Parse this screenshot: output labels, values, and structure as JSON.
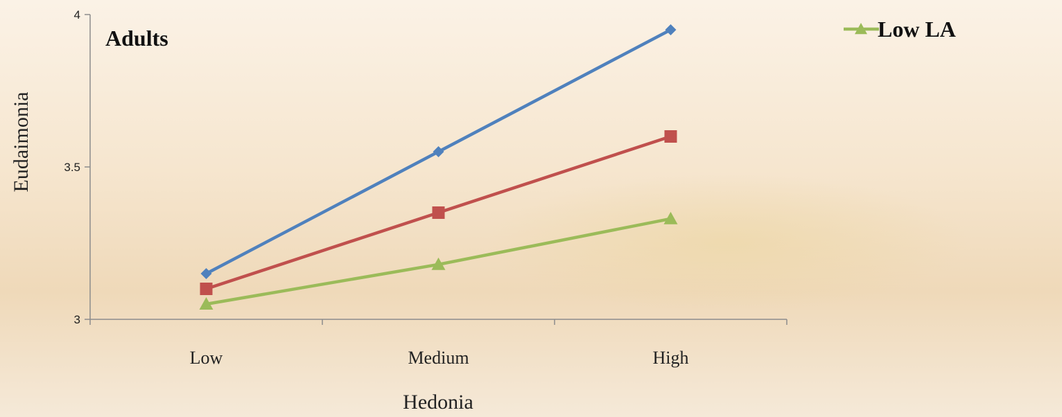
{
  "chart_data": {
    "type": "line",
    "panel_label": "Adults",
    "categories": [
      "Low",
      "Medium",
      "High"
    ],
    "xlabel": "Hedonia",
    "ylabel": "Eudaimonia",
    "ylim": [
      3,
      4
    ],
    "yticks": [
      "3",
      "3.5",
      "4"
    ],
    "grid": false,
    "legend_position": "top-right",
    "series": [
      {
        "values": [
          3.15,
          3.55,
          3.95
        ],
        "color": "#4f81bd",
        "marker": "diamond"
      },
      {
        "values": [
          3.1,
          3.35,
          3.6
        ],
        "color": "#c0504d",
        "marker": "square"
      },
      {
        "name": "Low LA",
        "values": [
          3.05,
          3.18,
          3.33
        ],
        "color": "#9bbb59",
        "marker": "triangle"
      }
    ]
  }
}
